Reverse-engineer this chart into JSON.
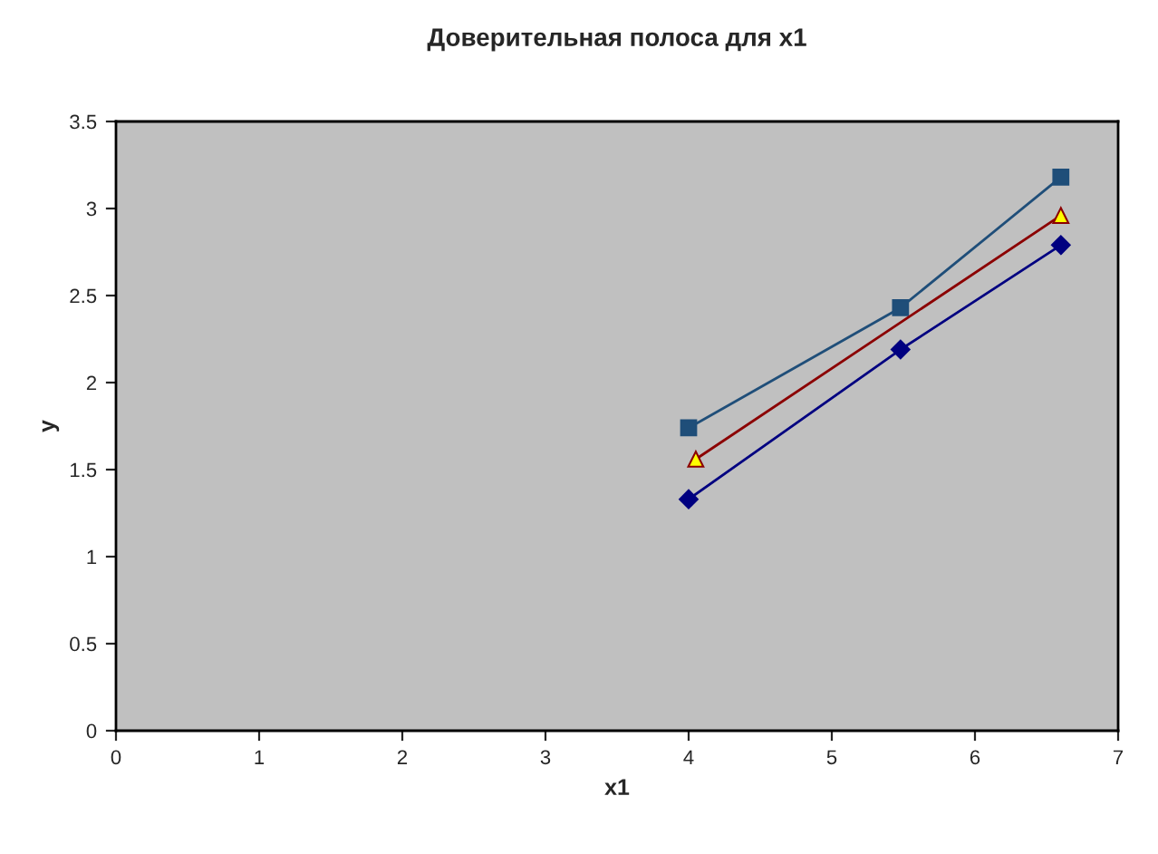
{
  "chart_data": {
    "type": "line",
    "title": "Доверительная полоса для x1",
    "xlabel": "x1",
    "ylabel": "y",
    "xlim": [
      0,
      7
    ],
    "xticks": [
      0,
      1,
      2,
      3,
      4,
      5,
      6,
      7
    ],
    "ylim": [
      0,
      3.5
    ],
    "yticks": [
      0,
      0.5,
      1,
      1.5,
      2,
      2.5,
      3,
      3.5
    ],
    "grid": false,
    "legend": false,
    "series": [
      {
        "marker": "square",
        "color": "#1f4e79",
        "x": [
          4.0,
          5.48,
          6.6
        ],
        "values": [
          1.74,
          2.43,
          3.18
        ]
      },
      {
        "marker": "triangle",
        "color": "#8b0000",
        "x": [
          4.05,
          6.6
        ],
        "values": [
          1.56,
          2.96
        ]
      },
      {
        "marker": "diamond",
        "color": "#000080",
        "x": [
          4.0,
          5.48,
          6.6
        ],
        "values": [
          1.33,
          2.19,
          2.79
        ]
      }
    ]
  }
}
